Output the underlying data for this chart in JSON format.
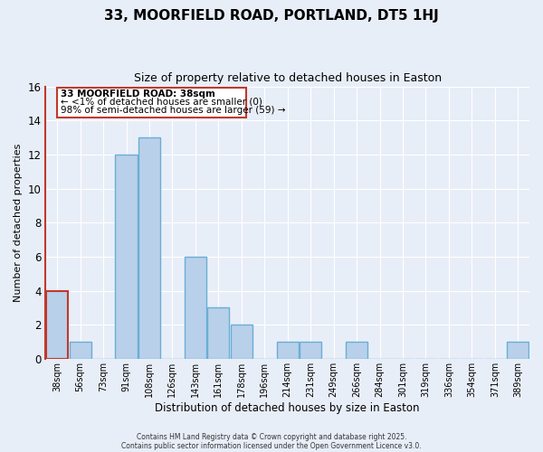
{
  "title": "33, MOORFIELD ROAD, PORTLAND, DT5 1HJ",
  "subtitle": "Size of property relative to detached houses in Easton",
  "xlabel": "Distribution of detached houses by size in Easton",
  "ylabel": "Number of detached properties",
  "categories": [
    "38sqm",
    "56sqm",
    "73sqm",
    "91sqm",
    "108sqm",
    "126sqm",
    "143sqm",
    "161sqm",
    "178sqm",
    "196sqm",
    "214sqm",
    "231sqm",
    "249sqm",
    "266sqm",
    "284sqm",
    "301sqm",
    "319sqm",
    "336sqm",
    "354sqm",
    "371sqm",
    "389sqm"
  ],
  "values": [
    4,
    1,
    0,
    12,
    13,
    0,
    6,
    3,
    2,
    0,
    1,
    1,
    0,
    1,
    0,
    0,
    0,
    0,
    0,
    0,
    1
  ],
  "highlight_index": 0,
  "bar_color": "#b8d0ea",
  "bar_edge_color": "#6aaed6",
  "highlight_edge_color": "#c0392b",
  "ylim": [
    0,
    16
  ],
  "yticks": [
    0,
    2,
    4,
    6,
    8,
    10,
    12,
    14,
    16
  ],
  "annotation_title": "33 MOORFIELD ROAD: 38sqm",
  "annotation_line1": "← <1% of detached houses are smaller (0)",
  "annotation_line2": "98% of semi-detached houses are larger (59) →",
  "bg_color": "#e8eef8",
  "grid_color": "#ffffff",
  "footer1": "Contains HM Land Registry data © Crown copyright and database right 2025.",
  "footer2": "Contains public sector information licensed under the Open Government Licence v3.0."
}
